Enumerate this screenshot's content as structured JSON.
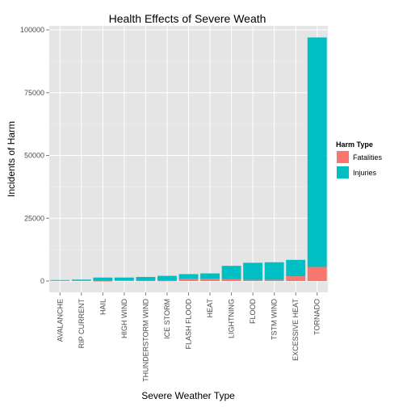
{
  "chart_data": {
    "type": "bar",
    "stacked": true,
    "title": "Health Effects of Severe Weath",
    "xlabel": "Severe Weather Type",
    "ylabel": "Incidents of Harm",
    "ylim": [
      0,
      100000
    ],
    "yticks": [
      0,
      25000,
      50000,
      75000,
      100000
    ],
    "ytick_labels": [
      "0",
      "25000",
      "50000",
      "75000",
      "100000"
    ],
    "grid": true,
    "legend": {
      "title": "Harm Type",
      "placement": "right"
    },
    "categories": [
      "AVALANCHE",
      "RIP CURRENT",
      "HAIL",
      "HIGH WIND",
      "THUNDERSTORM WIND",
      "ICE STORM",
      "FLASH FLOOD",
      "HEAT",
      "LIGHTNING",
      "FLOOD",
      "TSTM WIND",
      "EXCESSIVE HEAT",
      "TORNADO"
    ],
    "series": [
      {
        "name": "Fatalities",
        "color": "#F8766D",
        "values": [
          224,
          368,
          15,
          248,
          133,
          89,
          978,
          937,
          816,
          470,
          504,
          1903,
          5633
        ]
      },
      {
        "name": "Injuries",
        "color": "#00BFC4",
        "values": [
          170,
          232,
          1361,
          1137,
          1488,
          1975,
          1777,
          2100,
          5230,
          6789,
          6957,
          6525,
          91346
        ]
      }
    ]
  }
}
